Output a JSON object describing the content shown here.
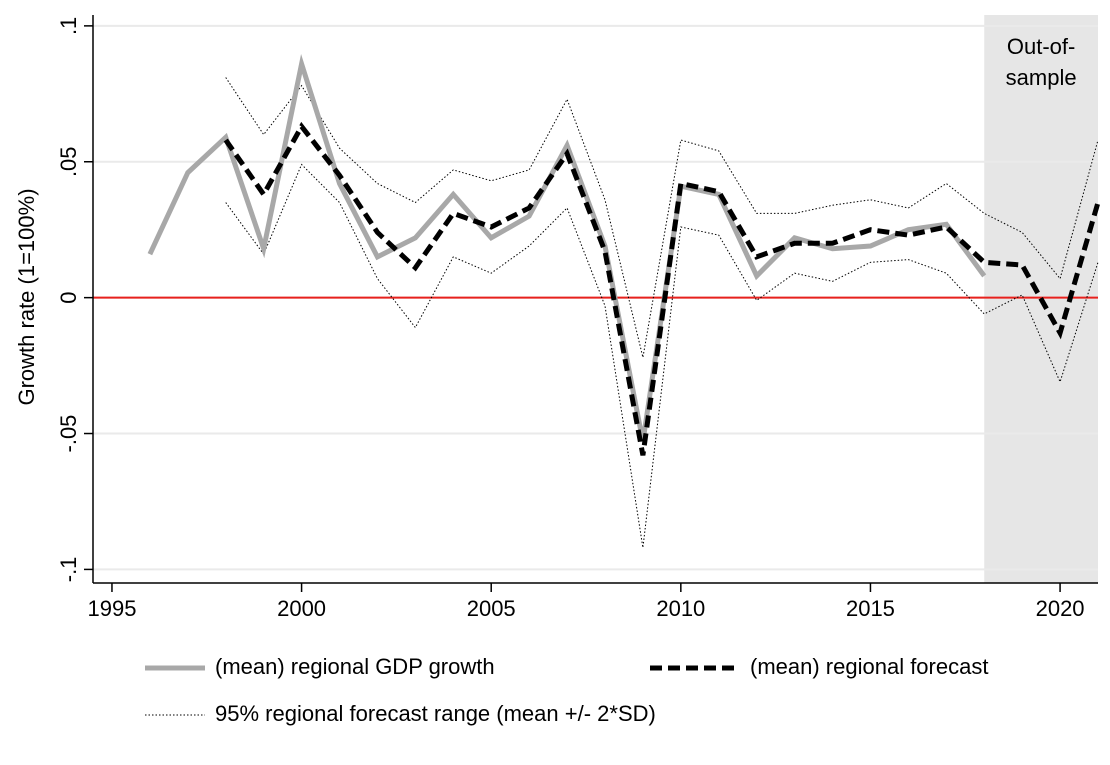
{
  "chart_data": {
    "type": "line",
    "ylabel": "Growth rate (1=100%)",
    "x": [
      1996,
      1997,
      1998,
      1999,
      2000,
      2001,
      2002,
      2003,
      2004,
      2005,
      2006,
      2007,
      2008,
      2009,
      2010,
      2011,
      2012,
      2013,
      2014,
      2015,
      2016,
      2017,
      2018,
      2019,
      2020,
      2021
    ],
    "xlim": [
      1994.5,
      2021
    ],
    "xticks": [
      1995,
      2000,
      2005,
      2010,
      2015,
      2020
    ],
    "ylim": [
      -0.105,
      0.104
    ],
    "yticks": [
      {
        "value": 0.1,
        "label": ".1"
      },
      {
        "value": 0.05,
        "label": ".05"
      },
      0,
      {
        "value": -0.05,
        "label": "-.05"
      },
      {
        "value": -0.1,
        "label": "-.1"
      }
    ],
    "grid": true,
    "hline": 0,
    "hline_color": "#e8211d",
    "shade": {
      "x0": 2018,
      "x1": 2021,
      "color": "#e6e6e6",
      "text": [
        "Out-of-",
        "sample"
      ]
    },
    "series": [
      {
        "name": "(mean) regional GDP growth",
        "color": "#a8a8a8",
        "style": "solid",
        "values": [
          0.016,
          0.046,
          0.059,
          0.018,
          0.086,
          0.042,
          0.015,
          0.022,
          0.038,
          0.022,
          0.03,
          0.056,
          0.019,
          -0.053,
          0.041,
          0.038,
          0.008,
          0.022,
          0.018,
          0.019,
          0.025,
          0.027,
          0.008,
          null,
          null,
          null
        ]
      },
      {
        "name": "(mean) regional forecast",
        "color": "#000000",
        "style": "dashed",
        "values": [
          null,
          null,
          0.058,
          0.038,
          0.063,
          0.045,
          0.024,
          0.011,
          0.031,
          0.026,
          0.033,
          0.053,
          0.017,
          -0.058,
          0.042,
          0.039,
          0.015,
          0.02,
          0.02,
          0.025,
          0.023,
          0.026,
          0.013,
          0.012,
          -0.013,
          0.035
        ]
      },
      {
        "name": "95% regional forecast range (mean +/- 2*SD)",
        "color": "#000000",
        "style": "dotted",
        "upper": [
          null,
          null,
          0.081,
          0.06,
          0.078,
          0.055,
          0.042,
          0.035,
          0.047,
          0.043,
          0.047,
          0.073,
          0.036,
          -0.022,
          0.058,
          0.054,
          0.031,
          0.031,
          0.034,
          0.036,
          0.033,
          0.042,
          0.031,
          0.024,
          0.007,
          0.058
        ],
        "lower": [
          null,
          null,
          0.035,
          0.016,
          0.049,
          0.035,
          0.007,
          -0.011,
          0.015,
          0.009,
          0.019,
          0.033,
          -0.003,
          -0.092,
          0.026,
          0.023,
          -0.001,
          0.009,
          0.006,
          0.013,
          0.014,
          0.009,
          -0.006,
          0.001,
          -0.031,
          0.013
        ]
      }
    ]
  }
}
